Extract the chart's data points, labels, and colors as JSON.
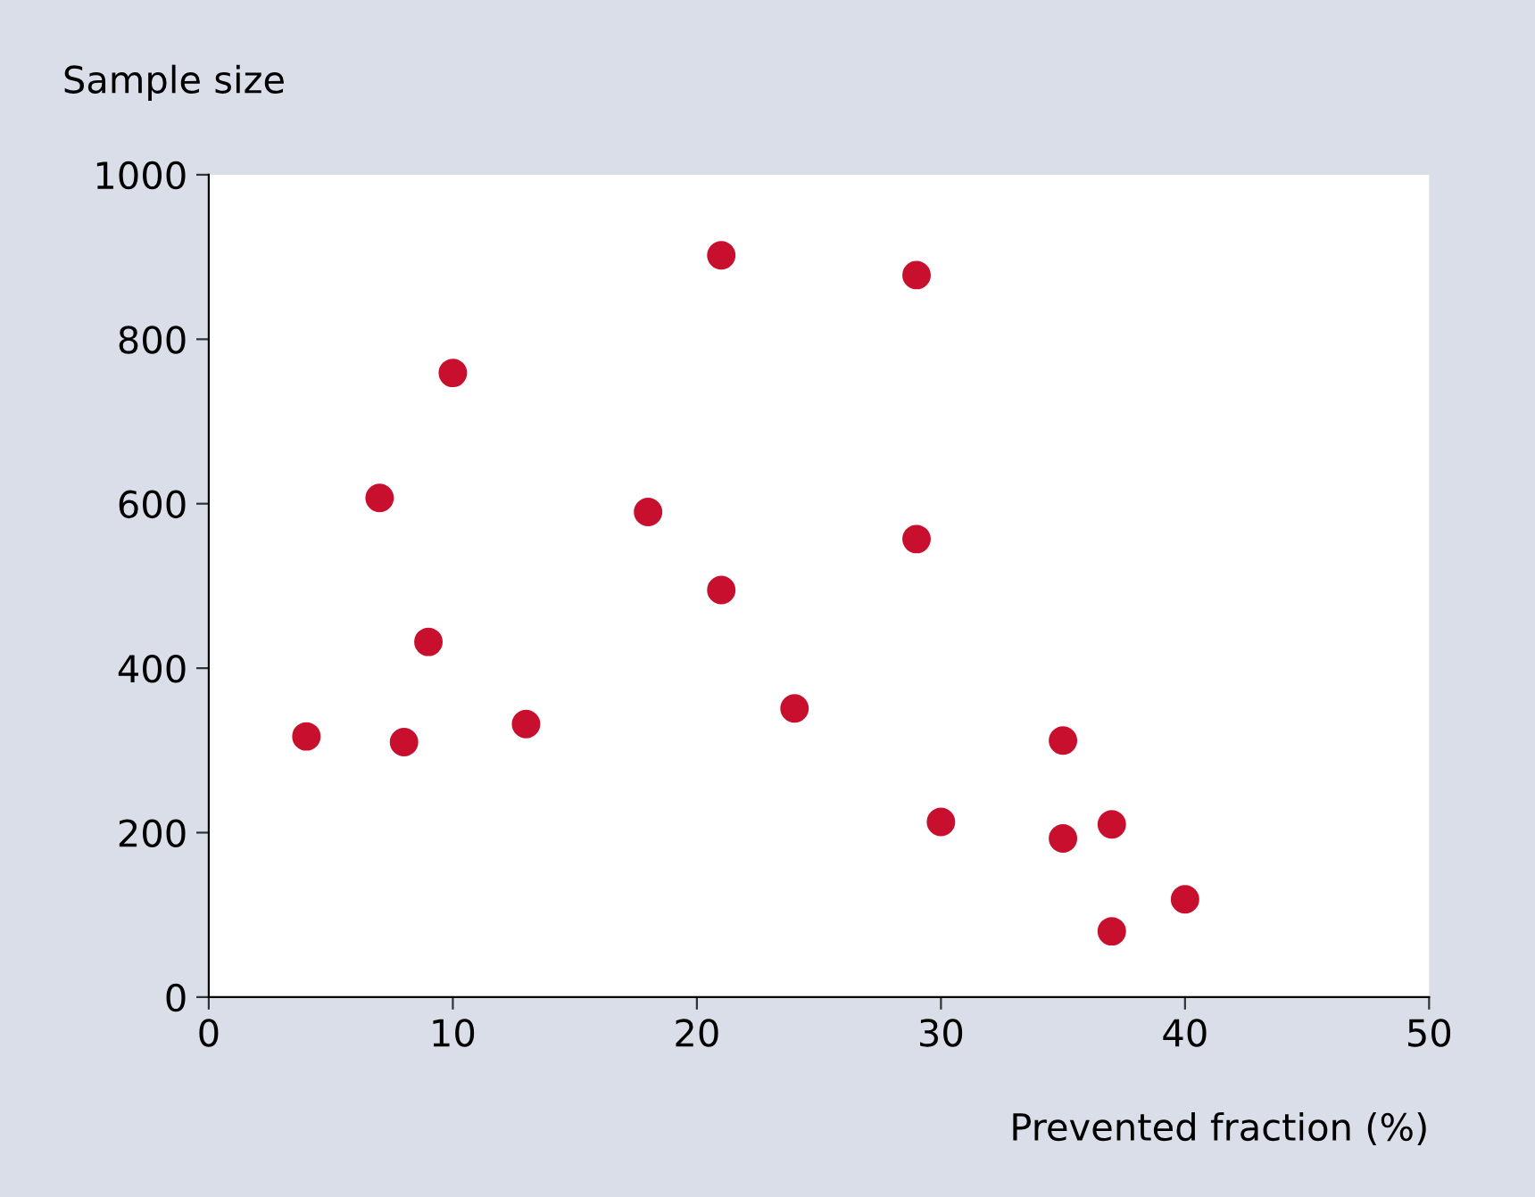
{
  "chart_data": {
    "type": "scatter",
    "xlabel": "Prevented fraction (%)",
    "ylabel": "Sample size",
    "x": [
      4,
      8,
      7,
      9,
      10,
      13,
      18,
      21,
      21,
      24,
      29,
      29,
      30,
      35,
      35,
      37,
      37,
      40
    ],
    "values": [
      317,
      310,
      607,
      432,
      759,
      332,
      590,
      902,
      495,
      351,
      878,
      557,
      213,
      312,
      193,
      210,
      80,
      119
    ],
    "color": "#c8102e",
    "marker": "circle",
    "grid": false,
    "legend": false,
    "xlim": [
      0,
      50
    ],
    "ylim": [
      0,
      1000
    ],
    "xticks": [
      0,
      10,
      20,
      30,
      40,
      50
    ],
    "yticks": [
      0,
      200,
      400,
      600,
      800,
      1000
    ]
  }
}
